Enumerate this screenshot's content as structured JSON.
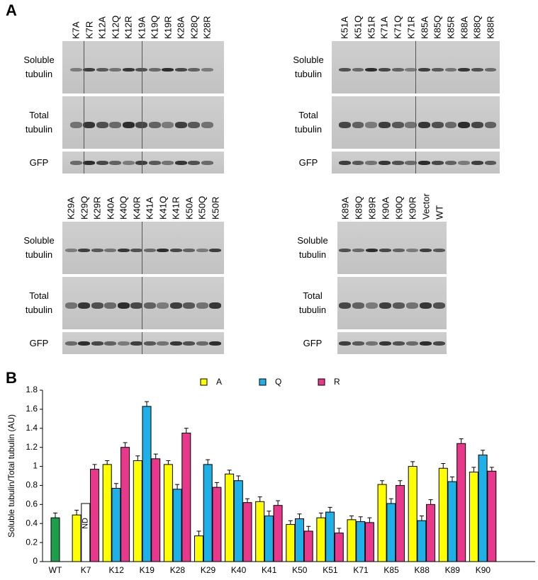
{
  "panel_a": {
    "label": "A",
    "blots": [
      {
        "lanes": [
          "K7A",
          "K7R",
          "K12A",
          "K12Q",
          "K12R",
          "K19A",
          "K19Q",
          "K19R",
          "K28A",
          "K28Q",
          "K28R"
        ],
        "rows": [
          "Soluble tubulin",
          "Total tubulin",
          "GFP"
        ]
      },
      {
        "lanes": [
          "K51A",
          "K51Q",
          "K51R",
          "K71A",
          "K71Q",
          "K71R",
          "K85A",
          "K85Q",
          "K85R",
          "K88A",
          "K88Q",
          "K88R"
        ],
        "rows": [
          "Soluble tubulin",
          "Total tubulin",
          "GFP"
        ]
      },
      {
        "lanes": [
          "K29A",
          "K29Q",
          "K29R",
          "K40A",
          "K40Q",
          "K40R",
          "K41A",
          "K41Q",
          "K41R",
          "K50A",
          "K50Q",
          "K50R"
        ],
        "rows": [
          "Soluble tubulin",
          "Total tubulin",
          "GFP"
        ]
      },
      {
        "lanes": [
          "K89A",
          "K89Q",
          "K89R",
          "K90A",
          "K90Q",
          "K90R",
          "Vector",
          "WT"
        ],
        "rows": [
          "Soluble tubulin",
          "Total tubulin",
          "GFP"
        ]
      }
    ]
  },
  "chart_data": {
    "type": "bar",
    "panel_label": "B",
    "ylabel": "Soluble tubulin/Total tubulin (AU)",
    "categories": [
      "WT",
      "K7",
      "K12",
      "K19",
      "K28",
      "K29",
      "K40",
      "K41",
      "K50",
      "K51",
      "K71",
      "K85",
      "K88",
      "K89",
      "K90"
    ],
    "control": {
      "value": 0.46,
      "error": 0.05,
      "color": "#1e9e4a"
    },
    "series": [
      {
        "name": "A",
        "color": "#ffff00",
        "values": [
          null,
          0.49,
          1.02,
          1.06,
          1.02,
          0.27,
          0.92,
          0.63,
          0.39,
          0.46,
          0.44,
          0.81,
          1.0,
          0.98,
          0.94
        ],
        "errors": [
          null,
          0.05,
          0.04,
          0.05,
          0.04,
          0.05,
          0.04,
          0.05,
          0.04,
          0.05,
          0.04,
          0.04,
          0.05,
          0.05,
          0.05
        ]
      },
      {
        "name": "Q",
        "color": "#1fb0e8",
        "values": [
          null,
          0.61,
          0.77,
          1.63,
          0.76,
          1.02,
          0.85,
          0.48,
          0.45,
          0.52,
          0.42,
          0.61,
          0.43,
          0.84,
          1.12
        ],
        "errors": [
          null,
          null,
          0.05,
          0.05,
          0.05,
          0.05,
          0.05,
          0.05,
          0.05,
          0.05,
          0.05,
          0.05,
          0.05,
          0.05,
          0.05
        ]
      },
      {
        "name": "R",
        "color": "#e8388c",
        "values": [
          null,
          0.97,
          1.2,
          1.08,
          1.35,
          0.78,
          0.62,
          0.59,
          0.32,
          0.3,
          0.41,
          0.8,
          0.6,
          1.24,
          0.95
        ],
        "errors": [
          null,
          0.05,
          0.05,
          0.05,
          0.05,
          0.05,
          0.04,
          0.05,
          0.05,
          0.05,
          0.05,
          0.05,
          0.05,
          0.05,
          0.04
        ]
      }
    ],
    "annotations": [
      {
        "text": "ND",
        "category": "K7",
        "series": "Q"
      }
    ],
    "ylim": [
      0,
      1.8
    ],
    "yticks": [
      0,
      0.2,
      0.4,
      0.6,
      0.8,
      1,
      1.2,
      1.4,
      1.6,
      1.8
    ]
  }
}
